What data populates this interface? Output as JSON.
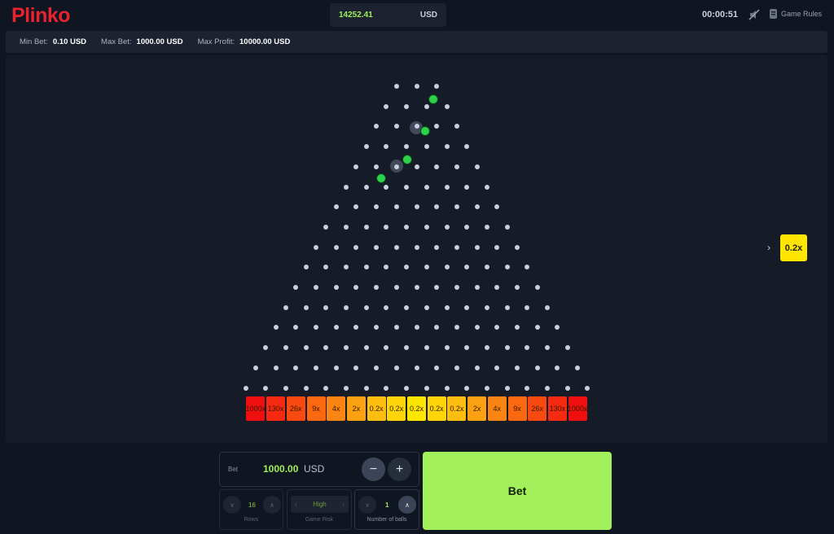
{
  "header": {
    "logo": "Plinko",
    "balance": "14252.41",
    "balance_currency": "USD",
    "timer": "00:00:51",
    "sound_icon": "sound-muted-icon",
    "rules_label": "Game Rules"
  },
  "limits": {
    "min_label": "Min Bet:",
    "min_value": "0.10 USD",
    "max_label": "Max Bet:",
    "max_value": "1000.00 USD",
    "profit_label": "Max Profit:",
    "profit_value": "10000.00 USD"
  },
  "board": {
    "rows": 16,
    "multipliers": [
      "1000x",
      "130x",
      "26x",
      "9x",
      "4x",
      "2x",
      "0.2x",
      "0.2x",
      "0.2x",
      "0.2x",
      "0.2x",
      "2x",
      "4x",
      "9x",
      "26x",
      "130x",
      "1000x"
    ],
    "slot_colors": [
      "#f00f0f",
      "#f52a10",
      "#f84a10",
      "#fa6810",
      "#fb8512",
      "#fca112",
      "#fdbe10",
      "#fed40a",
      "#ffe600",
      "#fed40a",
      "#fdbe10",
      "#fca112",
      "#fb8512",
      "#fa6810",
      "#f84a10",
      "#f52a10",
      "#f00f0f"
    ]
  },
  "history": {
    "last": "0.2x"
  },
  "controls": {
    "bet_label": "Bet",
    "bet_amount": "1000.00",
    "bet_currency": "USD",
    "minus": "−",
    "plus": "+",
    "rows_value": "16",
    "rows_label": "Rows",
    "risk_value": "High",
    "risk_label": "Game Risk",
    "balls_value": "1",
    "balls_label": "Number of balls",
    "bet_button": "Bet"
  }
}
